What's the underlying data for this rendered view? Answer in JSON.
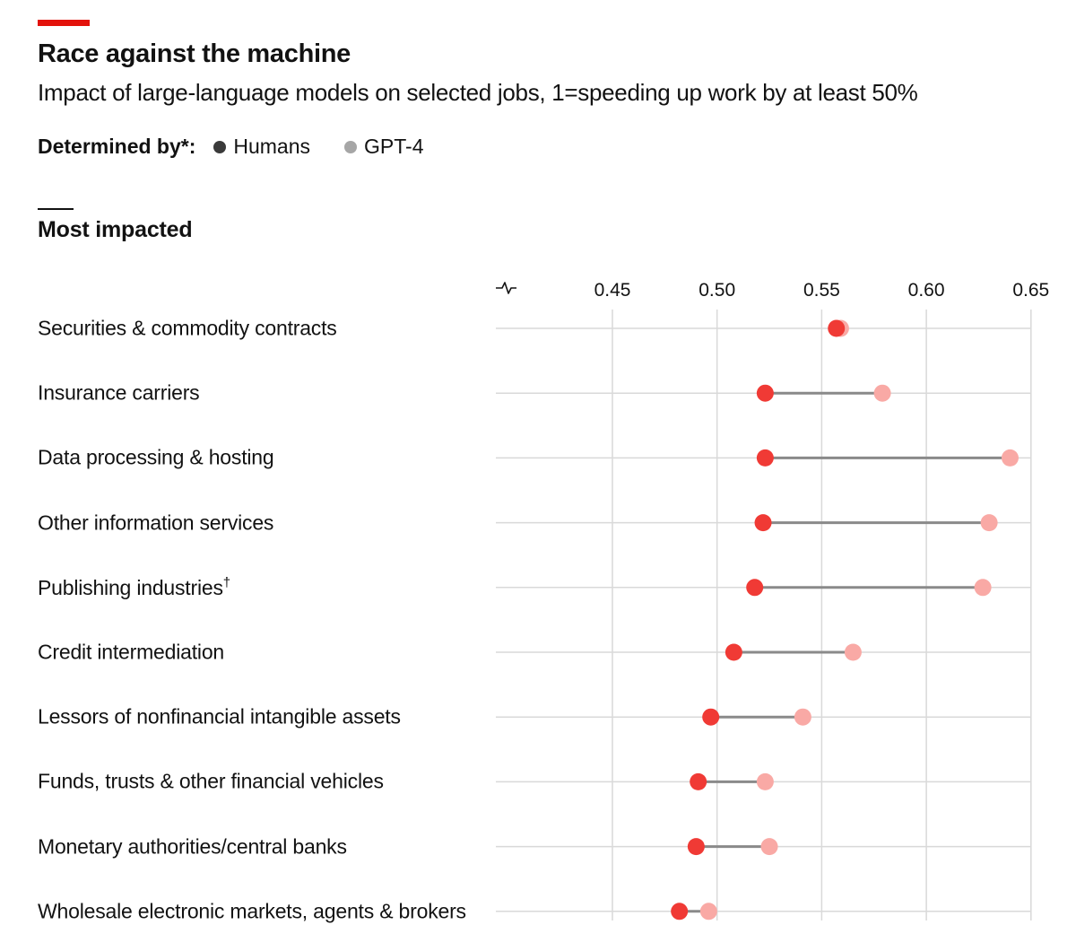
{
  "header": {
    "title": "Race against the machine",
    "subtitle": "Impact of large-language models on selected jobs, 1=speeding up work by at least 50%"
  },
  "legend": {
    "title": "Determined by*:",
    "items": [
      {
        "label": "Humans",
        "color": "#3a3a3a"
      },
      {
        "label": "GPT-4",
        "color": "#a6a6a6"
      }
    ]
  },
  "section": {
    "title": "Most impacted"
  },
  "colors": {
    "humans": "#f03a35",
    "gpt4": "#f9a9a5",
    "connector": "#8a8a8a",
    "grid": "#d9d9d9",
    "accent": "#e3120b"
  },
  "chart_data": {
    "type": "dumbbell",
    "xlim": [
      0.4,
      0.65
    ],
    "axis_break": true,
    "x_ticks": [
      "0.45",
      "0.50",
      "0.55",
      "0.60",
      "0.65"
    ],
    "x_tick_values": [
      0.45,
      0.5,
      0.55,
      0.6,
      0.65
    ],
    "categories": [
      "Securities & commodity contracts",
      "Insurance carriers",
      "Data processing & hosting",
      "Other information services",
      "Publishing industries",
      "Credit intermediation",
      "Lessors of nonfinancial intangible assets",
      "Funds, trusts & other financial vehicles",
      "Monetary authorities/central banks",
      "Wholesale electronic markets, agents & brokers"
    ],
    "category_note_marks": [
      "",
      "",
      "",
      "",
      "†",
      "",
      "",
      "",
      "",
      ""
    ],
    "series": [
      {
        "name": "Humans",
        "values": [
          0.557,
          0.523,
          0.523,
          0.522,
          0.518,
          0.508,
          0.497,
          0.491,
          0.49,
          0.482
        ]
      },
      {
        "name": "GPT-4",
        "values": [
          0.559,
          0.579,
          0.64,
          0.63,
          0.627,
          0.565,
          0.541,
          0.523,
          0.525,
          0.496
        ]
      }
    ]
  }
}
